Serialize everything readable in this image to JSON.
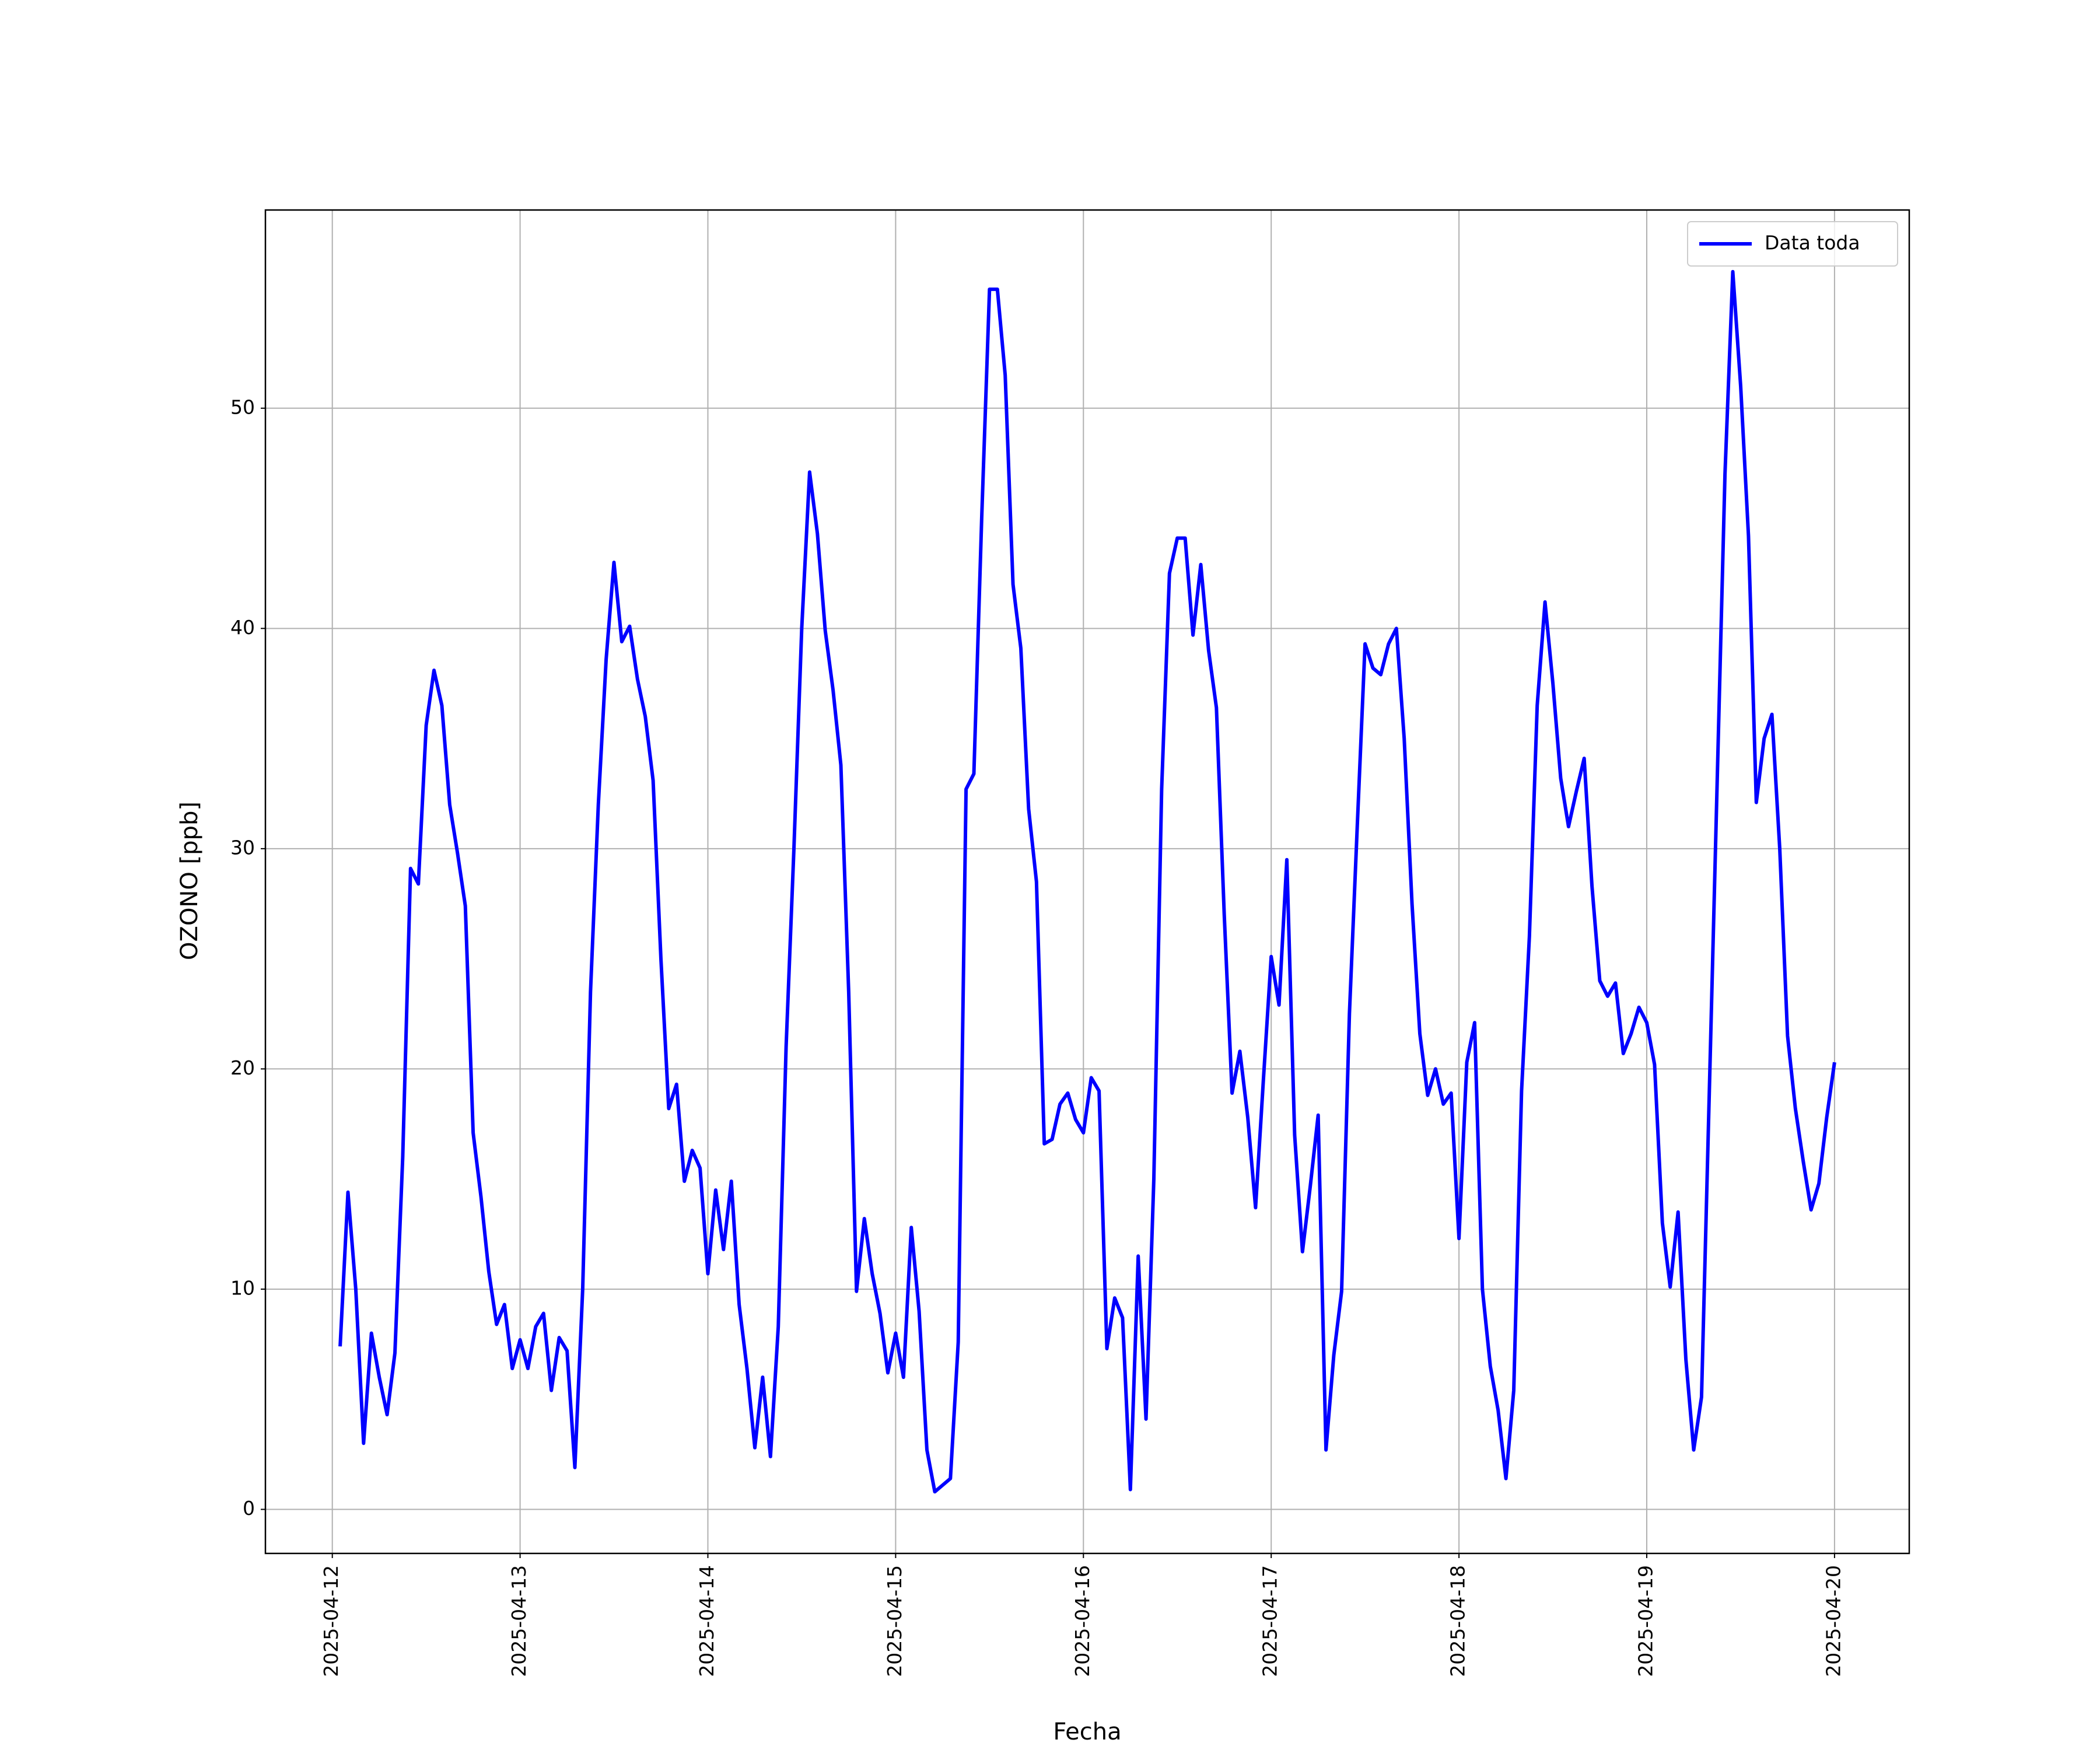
{
  "chart_data": {
    "type": "line",
    "xlabel": "Fecha",
    "ylabel": "OZONO [ppb]",
    "x": [
      "2025-04-12T01:00",
      "2025-04-12T02:00",
      "2025-04-12T03:00",
      "2025-04-12T04:00",
      "2025-04-12T05:00",
      "2025-04-12T06:00",
      "2025-04-12T07:00",
      "2025-04-12T08:00",
      "2025-04-12T09:00",
      "2025-04-12T10:00",
      "2025-04-12T11:00",
      "2025-04-12T12:00",
      "2025-04-12T13:00",
      "2025-04-12T14:00",
      "2025-04-12T15:00",
      "2025-04-12T16:00",
      "2025-04-12T17:00",
      "2025-04-12T18:00",
      "2025-04-12T19:00",
      "2025-04-12T20:00",
      "2025-04-12T21:00",
      "2025-04-12T22:00",
      "2025-04-12T23:00",
      "2025-04-13T00:00",
      "2025-04-13T01:00",
      "2025-04-13T02:00",
      "2025-04-13T03:00",
      "2025-04-13T04:00",
      "2025-04-13T05:00",
      "2025-04-13T06:00",
      "2025-04-13T07:00",
      "2025-04-13T08:00",
      "2025-04-13T09:00",
      "2025-04-13T10:00",
      "2025-04-13T11:00",
      "2025-04-13T12:00",
      "2025-04-13T13:00",
      "2025-04-13T14:00",
      "2025-04-13T15:00",
      "2025-04-13T16:00",
      "2025-04-13T17:00",
      "2025-04-13T18:00",
      "2025-04-13T19:00",
      "2025-04-13T20:00",
      "2025-04-13T21:00",
      "2025-04-13T22:00",
      "2025-04-13T23:00",
      "2025-04-14T00:00",
      "2025-04-14T01:00",
      "2025-04-14T02:00",
      "2025-04-14T03:00",
      "2025-04-14T04:00",
      "2025-04-14T05:00",
      "2025-04-14T06:00",
      "2025-04-14T07:00",
      "2025-04-14T08:00",
      "2025-04-14T09:00",
      "2025-04-14T10:00",
      "2025-04-14T11:00",
      "2025-04-14T12:00",
      "2025-04-14T13:00",
      "2025-04-14T14:00",
      "2025-04-14T15:00",
      "2025-04-14T16:00",
      "2025-04-14T17:00",
      "2025-04-14T18:00",
      "2025-04-14T19:00",
      "2025-04-14T20:00",
      "2025-04-14T21:00",
      "2025-04-14T22:00",
      "2025-04-14T23:00",
      "2025-04-15T00:00",
      "2025-04-15T01:00",
      "2025-04-15T02:00",
      "2025-04-15T03:00",
      "2025-04-15T04:00",
      "2025-04-15T05:00",
      "2025-04-15T06:00",
      "2025-04-15T07:00",
      "2025-04-15T08:00",
      "2025-04-15T09:00",
      "2025-04-15T10:00",
      "2025-04-15T11:00",
      "2025-04-15T12:00",
      "2025-04-15T13:00",
      "2025-04-15T14:00",
      "2025-04-15T15:00",
      "2025-04-15T16:00",
      "2025-04-15T17:00",
      "2025-04-15T18:00",
      "2025-04-15T19:00",
      "2025-04-15T20:00",
      "2025-04-15T21:00",
      "2025-04-15T22:00",
      "2025-04-15T23:00",
      "2025-04-16T00:00",
      "2025-04-16T01:00",
      "2025-04-16T02:00",
      "2025-04-16T03:00",
      "2025-04-16T04:00",
      "2025-04-16T05:00",
      "2025-04-16T06:00",
      "2025-04-16T07:00",
      "2025-04-16T08:00",
      "2025-04-16T09:00",
      "2025-04-16T10:00",
      "2025-04-16T11:00",
      "2025-04-16T12:00",
      "2025-04-16T13:00",
      "2025-04-16T14:00",
      "2025-04-16T15:00",
      "2025-04-16T16:00",
      "2025-04-16T17:00",
      "2025-04-16T18:00",
      "2025-04-16T19:00",
      "2025-04-16T20:00",
      "2025-04-16T21:00",
      "2025-04-16T22:00",
      "2025-04-16T23:00",
      "2025-04-17T00:00",
      "2025-04-17T01:00",
      "2025-04-17T02:00",
      "2025-04-17T03:00",
      "2025-04-17T04:00",
      "2025-04-17T05:00",
      "2025-04-17T06:00",
      "2025-04-17T07:00",
      "2025-04-17T08:00",
      "2025-04-17T09:00",
      "2025-04-17T10:00",
      "2025-04-17T11:00",
      "2025-04-17T12:00",
      "2025-04-17T13:00",
      "2025-04-17T14:00",
      "2025-04-17T15:00",
      "2025-04-17T16:00",
      "2025-04-17T17:00",
      "2025-04-17T18:00",
      "2025-04-17T19:00",
      "2025-04-17T20:00",
      "2025-04-17T21:00",
      "2025-04-17T22:00",
      "2025-04-17T23:00",
      "2025-04-18T00:00",
      "2025-04-18T01:00",
      "2025-04-18T02:00",
      "2025-04-18T03:00",
      "2025-04-18T04:00",
      "2025-04-18T05:00",
      "2025-04-18T06:00",
      "2025-04-18T07:00",
      "2025-04-18T08:00",
      "2025-04-18T09:00",
      "2025-04-18T10:00",
      "2025-04-18T11:00",
      "2025-04-18T12:00",
      "2025-04-18T13:00",
      "2025-04-18T14:00",
      "2025-04-18T15:00",
      "2025-04-18T16:00",
      "2025-04-18T17:00",
      "2025-04-18T18:00",
      "2025-04-18T19:00",
      "2025-04-18T20:00",
      "2025-04-18T21:00",
      "2025-04-18T22:00",
      "2025-04-18T23:00",
      "2025-04-19T00:00",
      "2025-04-19T01:00",
      "2025-04-19T02:00",
      "2025-04-19T03:00",
      "2025-04-19T04:00",
      "2025-04-19T05:00",
      "2025-04-19T06:00",
      "2025-04-19T07:00",
      "2025-04-19T08:00",
      "2025-04-19T09:00",
      "2025-04-19T10:00",
      "2025-04-19T11:00",
      "2025-04-19T12:00",
      "2025-04-19T13:00",
      "2025-04-19T14:00",
      "2025-04-19T15:00",
      "2025-04-19T16:00",
      "2025-04-19T17:00",
      "2025-04-19T18:00",
      "2025-04-19T19:00",
      "2025-04-19T20:00",
      "2025-04-19T21:00",
      "2025-04-19T22:00",
      "2025-04-19T23:00",
      "2025-04-20T00:00"
    ],
    "series": [
      {
        "name": "Data toda",
        "color": "#0000ff",
        "values": [
          7.4,
          14.4,
          10,
          3.0,
          8.0,
          6,
          4.3,
          7.1,
          16,
          29.1,
          28.4,
          35.6,
          38.1,
          36.5,
          32,
          29.8,
          27.4,
          17.1,
          14.2,
          10.8,
          8.4,
          9.3,
          6.4,
          7.7,
          6.4,
          8.3,
          8.9,
          5.4,
          7.8,
          7.2,
          1.9,
          10,
          23.5,
          32,
          38.6,
          43,
          39.4,
          40.1,
          37.7,
          36,
          33.1,
          25,
          18.2,
          19.3,
          14.9,
          16.3,
          15.5,
          10.7,
          14.5,
          11.8,
          14.9,
          9.3,
          6.4,
          2.8,
          6.0,
          2.4,
          8.3,
          21,
          30,
          40,
          47.1,
          44.3,
          39.9,
          37.2,
          33.8,
          23.5,
          9.9,
          13.2,
          10.7,
          8.9,
          6.2,
          8,
          6,
          12.8,
          9,
          2.7,
          0.8,
          1.1,
          1.4,
          7.6,
          32.7,
          33.4,
          45,
          55.4,
          55.4,
          51.5,
          42,
          39.1,
          31.8,
          28.5,
          16.6,
          16.8,
          18.4,
          18.9,
          17.7,
          17.1,
          19.6,
          19,
          7.3,
          9.6,
          8.7,
          0.9,
          11.5,
          4.1,
          15,
          32.7,
          42.5,
          44.1,
          44.1,
          39.7,
          42.9,
          39,
          36.4,
          27,
          18.9,
          20.8,
          17.8,
          13.7,
          19.5,
          25.1,
          22.9,
          29.5,
          17,
          11.7,
          14.7,
          17.9,
          2.7,
          7,
          9.9,
          22.5,
          31,
          39.3,
          38.2,
          37.9,
          39.3,
          40,
          35,
          27.5,
          21.6,
          18.8,
          20,
          18.4,
          18.9,
          12.3,
          20.3,
          22.1,
          10,
          6.5,
          4.5,
          1.4,
          5.4,
          19,
          26,
          36.5,
          41.2,
          37.5,
          33.2,
          31,
          32.6,
          34.1,
          28.3,
          24,
          23.3,
          23.9,
          20.7,
          21.6,
          22.8,
          22.1,
          20.2,
          13,
          10.1,
          13.5,
          6.8,
          2.7,
          5.1,
          19,
          33,
          47,
          56.2,
          51,
          44.2,
          32.1,
          35,
          36.1,
          30,
          21.5,
          18.2,
          15.8,
          13.6,
          14.8,
          17.8,
          20.3
        ]
      }
    ],
    "xlim": [
      "2025-04-11T15:27",
      "2025-04-20T09:33"
    ],
    "xticks": [
      "2025-04-12",
      "2025-04-13",
      "2025-04-14",
      "2025-04-15",
      "2025-04-16",
      "2025-04-17",
      "2025-04-18",
      "2025-04-19",
      "2025-04-20"
    ],
    "ylim": [
      -2,
      59
    ],
    "yticks": [
      0,
      10,
      20,
      30,
      40,
      50
    ],
    "grid": true,
    "legend": "upper right"
  }
}
